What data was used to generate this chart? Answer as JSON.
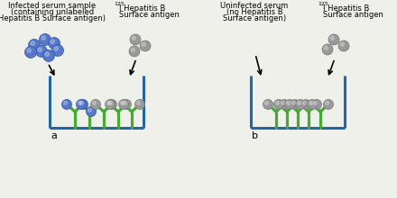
{
  "bg_color": "#f0f0eb",
  "title_left_line1": "Infected serum sample",
  "title_left_line2": "(containing unlabeled",
  "title_left_line3": "Hepatitis B Surface antigen)",
  "title_left_radio_sup": "125",
  "title_left_radio": "I Hepatitis B",
  "title_left_radio2": "Surface antigen",
  "title_right_line1": "Uninfected serum",
  "title_right_line2": "(no Hepatitis B",
  "title_right_line3": "Surface antigen)",
  "title_right_radio_sup": "125",
  "title_right_radio": "I Hepatitis B",
  "title_right_radio2": "Surface antigen",
  "label_a": "a",
  "label_b": "b",
  "blue_color": "#5577cc",
  "gray_color": "#999999",
  "green_color": "#44aa33",
  "teal_color": "#2266aa",
  "font_size_title": 6.0,
  "font_size_sup": 4.5,
  "font_size_label": 8
}
